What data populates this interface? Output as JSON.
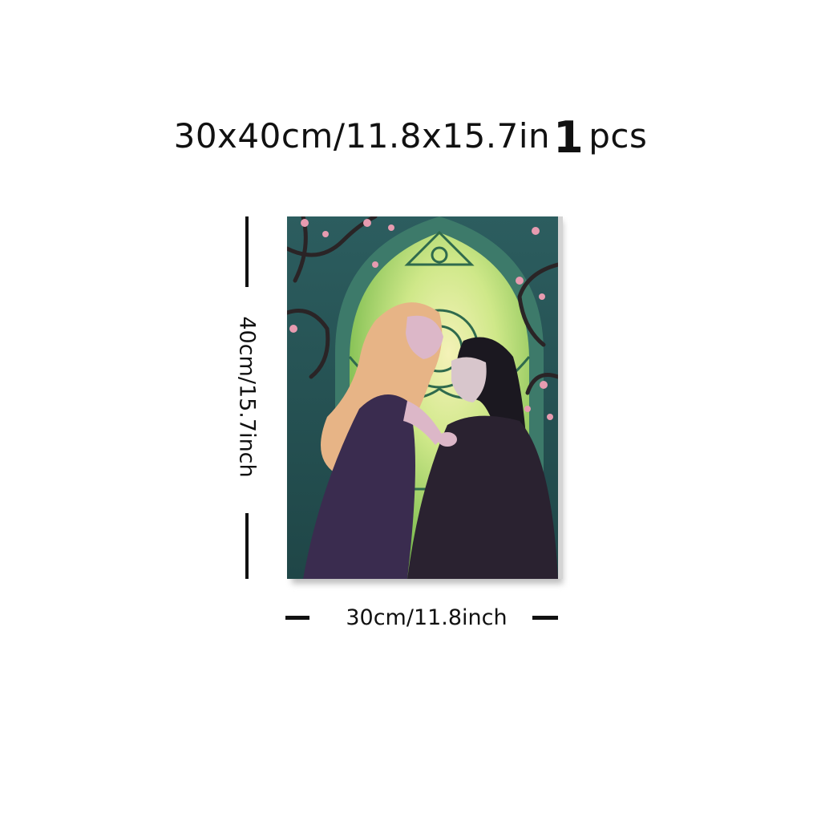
{
  "headline": {
    "size": "30x40cm/11.8x15.7in",
    "quantity": "1",
    "unit": "pcs"
  },
  "dimensions": {
    "height_label": "40cm/15.7inch",
    "width_label": "30cm/11.8inch"
  },
  "artwork": {
    "subject": "stained-glass-window-couple-illustration",
    "colors": {
      "stone": "#2f6062",
      "glass": "#9fd36a",
      "glow": "#f4f2b8",
      "dress": "#3a2c4f",
      "robe": "#2a2230",
      "hair_blonde": "#e7b486",
      "hair_dark": "#1b1820",
      "skin": "#dcb7c8",
      "blossom": "#e79bb0",
      "branch": "#2a2426"
    }
  }
}
